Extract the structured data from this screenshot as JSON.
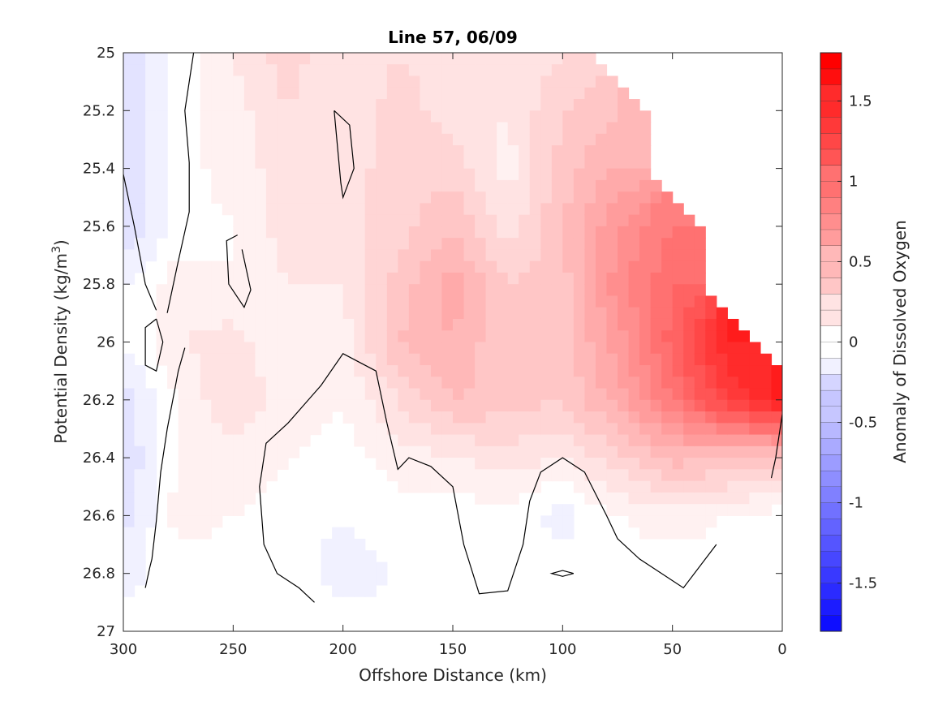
{
  "chart_data": {
    "type": "heatmap",
    "title": "Line 57, 06/09",
    "xlabel": "Offshore Distance (km)",
    "ylabel": "Potential Density (kg/m",
    "ylabel_sup": "3",
    "ylabel_close": ")",
    "xlim": [
      300,
      0
    ],
    "ylim": [
      25,
      27
    ],
    "x_reversed": true,
    "y_reversed": true,
    "x_ticks": [
      300,
      250,
      200,
      150,
      100,
      50,
      0
    ],
    "x_tick_labels": [
      "300",
      "250",
      "200",
      "150",
      "100",
      "50",
      "0"
    ],
    "y_ticks": [
      25,
      25.2,
      25.4,
      25.6,
      25.8,
      26,
      26.2,
      26.4,
      26.6,
      26.8,
      27
    ],
    "y_tick_labels": [
      "25",
      "25.2",
      "25.4",
      "25.6",
      "25.8",
      "26",
      "26.2",
      "26.4",
      "26.6",
      "26.8",
      "27"
    ],
    "colorbar": {
      "label": "Anomaly of Dissolved Oxygen",
      "clim": [
        -1.8,
        1.8
      ],
      "ticks": [
        -1.5,
        -1,
        -0.5,
        0,
        0.5,
        1,
        1.5
      ],
      "tick_labels": [
        "-1.5",
        "-1",
        "-0.5",
        "0",
        "0.5",
        "1",
        "1.5"
      ],
      "low_color": "#0000ff",
      "mid_color": "#ffffff",
      "high_color": "#ff0000"
    },
    "grid_x": [
      300,
      275,
      250,
      225,
      200,
      175,
      150,
      125,
      100,
      75,
      50,
      25,
      0
    ],
    "grid_y": [
      25,
      25.2,
      25.4,
      25.6,
      25.8,
      26,
      26.2,
      26.4,
      26.6,
      26.8,
      27
    ],
    "values": [
      [
        -0.25,
        0.0,
        0.15,
        0.3,
        0.15,
        0.25,
        0.2,
        0.15,
        0.25,
        null,
        null,
        null,
        null
      ],
      [
        -0.25,
        0.0,
        0.1,
        0.25,
        0.15,
        0.3,
        0.2,
        0.15,
        0.35,
        0.45,
        null,
        null,
        null
      ],
      [
        -0.25,
        0.0,
        0.1,
        0.2,
        0.2,
        0.3,
        0.3,
        0.1,
        0.4,
        0.55,
        null,
        null,
        null
      ],
      [
        -0.25,
        0.0,
        0.05,
        0.2,
        0.2,
        0.3,
        0.45,
        0.2,
        0.45,
        0.75,
        0.95,
        null,
        null
      ],
      [
        -0.05,
        0.1,
        0.05,
        0.15,
        0.15,
        0.4,
        0.6,
        0.35,
        0.4,
        0.8,
        1.05,
        null,
        null
      ],
      [
        -0.05,
        0.15,
        0.2,
        0.05,
        0.1,
        0.45,
        0.55,
        0.35,
        0.4,
        0.7,
        1.1,
        1.55,
        null
      ],
      [
        -0.2,
        0.05,
        0.25,
        0.1,
        0.05,
        0.25,
        0.45,
        0.4,
        0.35,
        0.6,
        0.95,
        1.35,
        1.6
      ],
      [
        -0.25,
        0.05,
        0.1,
        0.05,
        0.0,
        0.1,
        0.15,
        0.2,
        0.15,
        0.3,
        0.5,
        0.45,
        0.4
      ],
      [
        -0.2,
        0.1,
        0.05,
        0.0,
        -0.05,
        0.0,
        0.0,
        0.0,
        -0.1,
        0.05,
        0.1,
        0.05,
        0.0
      ],
      [
        -0.1,
        0.0,
        0.0,
        0.0,
        -0.1,
        -0.05,
        0.0,
        0.0,
        0.0,
        0.0,
        0.0,
        0.0,
        0.0
      ],
      [
        0.0,
        0.0,
        0.0,
        0.0,
        0.0,
        0.0,
        0.0,
        0.0,
        0.0,
        0.0,
        0.0,
        0.0,
        0.0
      ]
    ],
    "zero_contours": [
      [
        [
          290,
          26.85
        ],
        [
          288,
          26.78
        ],
        [
          287,
          26.75
        ],
        [
          285,
          26.62
        ],
        [
          283,
          26.45
        ],
        [
          280,
          26.3
        ],
        [
          277,
          26.18
        ],
        [
          275,
          26.1
        ],
        [
          272,
          26.02
        ]
      ],
      [
        [
          268,
          25.0
        ],
        [
          272,
          25.2
        ],
        [
          270,
          25.38
        ],
        [
          270,
          25.55
        ],
        [
          275,
          25.72
        ],
        [
          280,
          25.9
        ]
      ],
      [
        [
          300,
          25.42
        ],
        [
          295,
          25.6
        ],
        [
          290,
          25.8
        ],
        [
          285,
          25.89
        ]
      ],
      [
        [
          285,
          25.92
        ],
        [
          282,
          26.0
        ],
        [
          285,
          26.1
        ],
        [
          290,
          26.08
        ],
        [
          290,
          25.95
        ],
        [
          285,
          25.92
        ]
      ],
      [
        [
          246,
          25.68
        ],
        [
          242,
          25.82
        ],
        [
          245,
          25.88
        ],
        [
          252,
          25.8
        ],
        [
          253,
          25.65
        ],
        [
          248,
          25.63
        ]
      ],
      [
        [
          204,
          25.2
        ],
        [
          201,
          25.45
        ],
        [
          200,
          25.5
        ],
        [
          195,
          25.4
        ],
        [
          197,
          25.25
        ],
        [
          204,
          25.2
        ]
      ],
      [
        [
          213,
          26.9
        ],
        [
          220,
          26.85
        ],
        [
          230,
          26.8
        ],
        [
          236,
          26.7
        ],
        [
          238,
          26.5
        ],
        [
          235,
          26.35
        ],
        [
          225,
          26.28
        ],
        [
          210,
          26.15
        ],
        [
          200,
          26.04
        ],
        [
          185,
          26.1
        ],
        [
          180,
          26.28
        ],
        [
          175,
          26.44
        ],
        [
          170,
          26.4
        ],
        [
          160,
          26.43
        ],
        [
          150,
          26.5
        ],
        [
          145,
          26.7
        ],
        [
          138,
          26.87
        ],
        [
          125,
          26.86
        ],
        [
          118,
          26.7
        ],
        [
          115,
          26.55
        ],
        [
          110,
          26.45
        ],
        [
          100,
          26.4
        ],
        [
          90,
          26.45
        ],
        [
          80,
          26.6
        ],
        [
          75,
          26.68
        ],
        [
          65,
          26.75
        ],
        [
          45,
          26.85
        ],
        [
          30,
          26.7
        ]
      ],
      [
        [
          95,
          26.8
        ],
        [
          100,
          26.79
        ],
        [
          105,
          26.8
        ],
        [
          100,
          26.81
        ],
        [
          95,
          26.8
        ]
      ],
      [
        [
          0,
          26.25
        ],
        [
          3,
          26.4
        ],
        [
          5,
          26.47
        ]
      ]
    ]
  }
}
